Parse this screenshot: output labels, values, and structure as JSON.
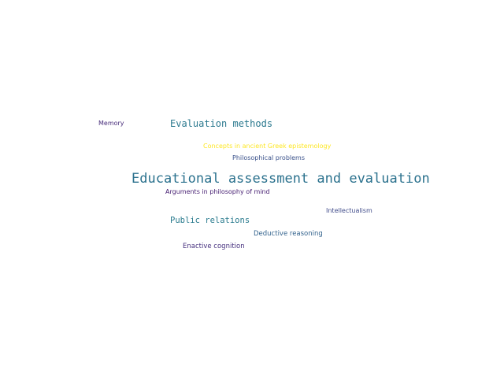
{
  "words": [
    {
      "key": "memory",
      "text": "Memory",
      "color": "#472c7a"
    },
    {
      "key": "evaluation",
      "text": "Evaluation methods",
      "color": "#2a788e"
    },
    {
      "key": "greek",
      "text": "Concepts in ancient Greek epistemology",
      "color": "#fde725"
    },
    {
      "key": "philprob",
      "text": "Philosophical problems",
      "color": "#3b528b"
    },
    {
      "key": "educational",
      "text": "Educational assessment and evaluation",
      "color": "#2c728e"
    },
    {
      "key": "mind",
      "text": "Arguments in philosophy of mind",
      "color": "#482173"
    },
    {
      "key": "intellect",
      "text": "Intellectualism",
      "color": "#3e4a89"
    },
    {
      "key": "pr",
      "text": "Public relations",
      "color": "#2a7b8e"
    },
    {
      "key": "deductive",
      "text": "Deductive reasoning",
      "color": "#33638d"
    },
    {
      "key": "enactive",
      "text": "Enactive cognition",
      "color": "#46307e"
    }
  ]
}
